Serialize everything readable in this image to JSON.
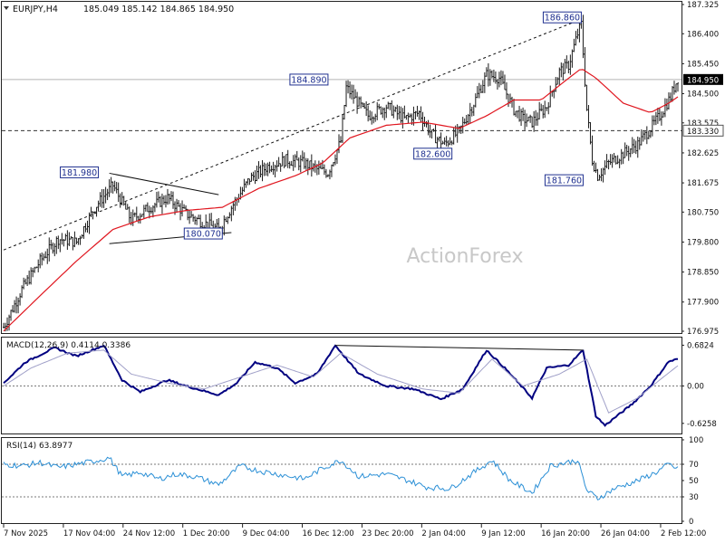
{
  "header": {
    "symbol_label": "EURJPY,H4",
    "ohlc_text": "185.049 185.142 184.865 184.950"
  },
  "watermark": "ActionForex",
  "colors": {
    "candles": "#1a1a1a",
    "ma": "#e0161f",
    "trendline": "#111111",
    "macd_line": "#000080",
    "macd_signal": "#a0a0c8",
    "rsi_line": "#2a8fd6",
    "grid_dotted": "#7a7a7a",
    "current_price_box": "#000000",
    "label_border": "#1e2f8f"
  },
  "chart_data": [
    {
      "type": "candlestick",
      "name": "price",
      "y_ticks": [
        "187.325",
        "186.400",
        "185.450",
        "184.500",
        "183.575",
        "182.625",
        "181.675",
        "180.750",
        "179.800",
        "178.850",
        "177.900",
        "176.975"
      ],
      "ylim": [
        176.975,
        187.325
      ],
      "x_tick_labels": [
        "7 Nov 2025",
        "17 Nov 04:00",
        "24 Nov 12:00",
        "1 Dec 20:00",
        "9 Dec 04:00",
        "16 Dec 12:00",
        "23 Dec 20:00",
        "2 Jan 04:00",
        "9 Jan 12:00",
        "16 Jan 20:00",
        "26 Jan 04:00",
        "2 Feb 12:00"
      ],
      "approx_close_path": [
        [
          0,
          177.1
        ],
        [
          10,
          178.3
        ],
        [
          20,
          179.2
        ],
        [
          30,
          179.9
        ],
        [
          40,
          179.8
        ],
        [
          50,
          180.9
        ],
        [
          60,
          181.6
        ],
        [
          70,
          180.5
        ],
        [
          80,
          180.9
        ],
        [
          90,
          181.2
        ],
        [
          100,
          180.7
        ],
        [
          110,
          180.4
        ],
        [
          118,
          180.2
        ],
        [
          125,
          180.9
        ],
        [
          135,
          181.8
        ],
        [
          145,
          182.2
        ],
        [
          155,
          182.4
        ],
        [
          165,
          182.3
        ],
        [
          172,
          182.1
        ],
        [
          178,
          182.0
        ],
        [
          185,
          183.0
        ],
        [
          188,
          184.7
        ],
        [
          192,
          184.4
        ],
        [
          200,
          183.8
        ],
        [
          210,
          184.1
        ],
        [
          220,
          183.7
        ],
        [
          228,
          183.9
        ],
        [
          235,
          183.2
        ],
        [
          242,
          182.9
        ],
        [
          250,
          183.3
        ],
        [
          258,
          184.2
        ],
        [
          265,
          185.1
        ],
        [
          272,
          185.0
        ],
        [
          280,
          184.0
        ],
        [
          285,
          183.7
        ],
        [
          290,
          183.6
        ],
        [
          298,
          184.1
        ],
        [
          305,
          185.2
        ],
        [
          310,
          185.4
        ],
        [
          315,
          186.4
        ],
        [
          317,
          186.7
        ],
        [
          320,
          184.0
        ],
        [
          323,
          182.4
        ],
        [
          326,
          181.9
        ],
        [
          332,
          182.3
        ],
        [
          340,
          182.6
        ],
        [
          348,
          182.9
        ],
        [
          355,
          183.4
        ],
        [
          360,
          183.8
        ],
        [
          366,
          184.4
        ],
        [
          370,
          185.0
        ]
      ],
      "annotations": [
        {
          "text": "186.860",
          "value": 186.86
        },
        {
          "text": "184.890",
          "value": 184.89
        },
        {
          "text": "181.980",
          "value": 181.98
        },
        {
          "text": "180.070",
          "value": 180.07
        },
        {
          "text": "182.600",
          "value": 182.6
        },
        {
          "text": "181.760",
          "value": 181.76
        }
      ],
      "price_tags": [
        {
          "text": "184.950",
          "value": 184.95,
          "style": "current"
        },
        {
          "text": "183.330",
          "value": 183.33,
          "style": "level"
        }
      ],
      "horizontal_levels": [
        {
          "value": 184.95,
          "style": "solid-gray"
        },
        {
          "value": 183.33,
          "style": "dashed"
        }
      ],
      "trendlines": [
        {
          "from": [
            0,
            179.55
          ],
          "to": [
            317,
            186.86
          ],
          "style": "dashed"
        },
        {
          "from": [
            58,
            181.98
          ],
          "to": [
            118,
            181.3
          ],
          "style": "solid"
        },
        {
          "from": [
            58,
            179.75
          ],
          "to": [
            125,
            180.1
          ],
          "style": "solid"
        }
      ],
      "moving_average_approx": [
        [
          0,
          176.98
        ],
        [
          20,
          178.1
        ],
        [
          40,
          179.2
        ],
        [
          60,
          180.2
        ],
        [
          80,
          180.6
        ],
        [
          100,
          180.8
        ],
        [
          120,
          180.9
        ],
        [
          140,
          181.5
        ],
        [
          160,
          181.9
        ],
        [
          175,
          182.3
        ],
        [
          190,
          183.1
        ],
        [
          210,
          183.5
        ],
        [
          230,
          183.6
        ],
        [
          250,
          183.4
        ],
        [
          265,
          183.8
        ],
        [
          280,
          184.3
        ],
        [
          295,
          184.3
        ],
        [
          308,
          184.9
        ],
        [
          317,
          185.3
        ],
        [
          325,
          185.0
        ],
        [
          340,
          184.2
        ],
        [
          355,
          183.9
        ],
        [
          365,
          184.2
        ],
        [
          370,
          184.4
        ]
      ]
    },
    {
      "type": "line",
      "name": "macd",
      "label": "MACD(12,26,9) 0.4114 0.3386",
      "y_ticks": [
        "0.6824",
        "0.00",
        "-0.6258"
      ],
      "ylim": [
        -0.78,
        0.78
      ],
      "series": [
        {
          "name": "macd",
          "values_approx": [
            [
              0,
              0.05
            ],
            [
              12,
              0.4
            ],
            [
              28,
              0.64
            ],
            [
              40,
              0.5
            ],
            [
              55,
              0.68
            ],
            [
              65,
              0.1
            ],
            [
              75,
              -0.1
            ],
            [
              90,
              0.1
            ],
            [
              100,
              0.0
            ],
            [
              118,
              -0.15
            ],
            [
              128,
              0.05
            ],
            [
              138,
              0.4
            ],
            [
              150,
              0.3
            ],
            [
              160,
              0.05
            ],
            [
              172,
              0.2
            ],
            [
              182,
              0.68
            ],
            [
              195,
              0.2
            ],
            [
              210,
              0.0
            ],
            [
              225,
              -0.05
            ],
            [
              240,
              -0.22
            ],
            [
              252,
              -0.05
            ],
            [
              265,
              0.6
            ],
            [
              275,
              0.3
            ],
            [
              290,
              -0.2
            ],
            [
              298,
              0.3
            ],
            [
              310,
              0.35
            ],
            [
              318,
              0.6
            ],
            [
              325,
              -0.5
            ],
            [
              330,
              -0.66
            ],
            [
              345,
              -0.3
            ],
            [
              355,
              0.0
            ],
            [
              365,
              0.41
            ],
            [
              370,
              0.45
            ]
          ]
        },
        {
          "name": "signal",
          "values_approx": [
            [
              0,
              0.0
            ],
            [
              15,
              0.3
            ],
            [
              35,
              0.55
            ],
            [
              55,
              0.6
            ],
            [
              70,
              0.2
            ],
            [
              90,
              0.05
            ],
            [
              110,
              -0.05
            ],
            [
              130,
              0.15
            ],
            [
              150,
              0.35
            ],
            [
              170,
              0.15
            ],
            [
              185,
              0.55
            ],
            [
              205,
              0.2
            ],
            [
              230,
              -0.05
            ],
            [
              250,
              -0.12
            ],
            [
              268,
              0.45
            ],
            [
              285,
              0.0
            ],
            [
              305,
              0.2
            ],
            [
              320,
              0.45
            ],
            [
              332,
              -0.45
            ],
            [
              348,
              -0.2
            ],
            [
              360,
              0.1
            ],
            [
              370,
              0.34
            ]
          ]
        }
      ],
      "trendlines": [
        {
          "from": [
            182,
            0.68
          ],
          "to": [
            318,
            0.6
          ],
          "style": "solid"
        }
      ]
    },
    {
      "type": "line",
      "name": "rsi",
      "label": "RSI(14) 63.8977",
      "y_ticks": [
        "100",
        "70",
        "50",
        "30",
        "0"
      ],
      "ylim": [
        0,
        100
      ],
      "levels": [
        70,
        30
      ],
      "series": [
        {
          "name": "rsi",
          "values_approx": [
            [
              0,
              70
            ],
            [
              10,
              68
            ],
            [
              20,
              72
            ],
            [
              30,
              66
            ],
            [
              40,
              70
            ],
            [
              50,
              74
            ],
            [
              58,
              78
            ],
            [
              65,
              55
            ],
            [
              75,
              60
            ],
            [
              85,
              52
            ],
            [
              95,
              58
            ],
            [
              105,
              55
            ],
            [
              118,
              45
            ],
            [
              130,
              68
            ],
            [
              140,
              62
            ],
            [
              150,
              58
            ],
            [
              165,
              52
            ],
            [
              175,
              65
            ],
            [
              185,
              75
            ],
            [
              195,
              55
            ],
            [
              210,
              58
            ],
            [
              222,
              50
            ],
            [
              232,
              42
            ],
            [
              245,
              40
            ],
            [
              258,
              60
            ],
            [
              268,
              75
            ],
            [
              278,
              50
            ],
            [
              290,
              35
            ],
            [
              300,
              68
            ],
            [
              315,
              75
            ],
            [
              320,
              38
            ],
            [
              326,
              28
            ],
            [
              335,
              40
            ],
            [
              348,
              50
            ],
            [
              358,
              60
            ],
            [
              365,
              70
            ],
            [
              370,
              64
            ]
          ]
        }
      ]
    }
  ]
}
